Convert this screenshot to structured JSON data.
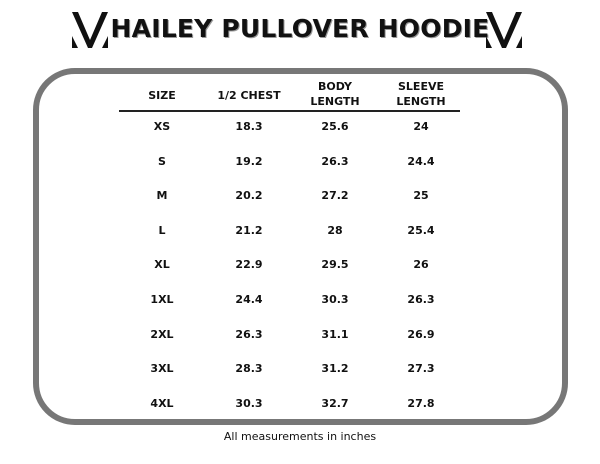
{
  "title": "HAILEY PULLOVER HOODIE",
  "logo_icon": "v-chevron-logo",
  "colors": {
    "frame": "#777777",
    "text": "#111111"
  },
  "table": {
    "headers": [
      [
        "SIZE",
        ""
      ],
      [
        "1/2 CHEST",
        ""
      ],
      [
        "BODY",
        "LENGTH"
      ],
      [
        "SLEEVE",
        "LENGTH"
      ]
    ],
    "rows": [
      [
        "XS",
        "18.3",
        "25.6",
        "24"
      ],
      [
        "S",
        "19.2",
        "26.3",
        "24.4"
      ],
      [
        "M",
        "20.2",
        "27.2",
        "25"
      ],
      [
        "L",
        "21.2",
        "28",
        "25.4"
      ],
      [
        "XL",
        "22.9",
        "29.5",
        "26"
      ],
      [
        "1XL",
        "24.4",
        "30.3",
        "26.3"
      ],
      [
        "2XL",
        "26.3",
        "31.1",
        "26.9"
      ],
      [
        "3XL",
        "28.3",
        "31.2",
        "27.3"
      ],
      [
        "4XL",
        "30.3",
        "32.7",
        "27.8"
      ]
    ]
  },
  "footer": "All measurements in inches"
}
